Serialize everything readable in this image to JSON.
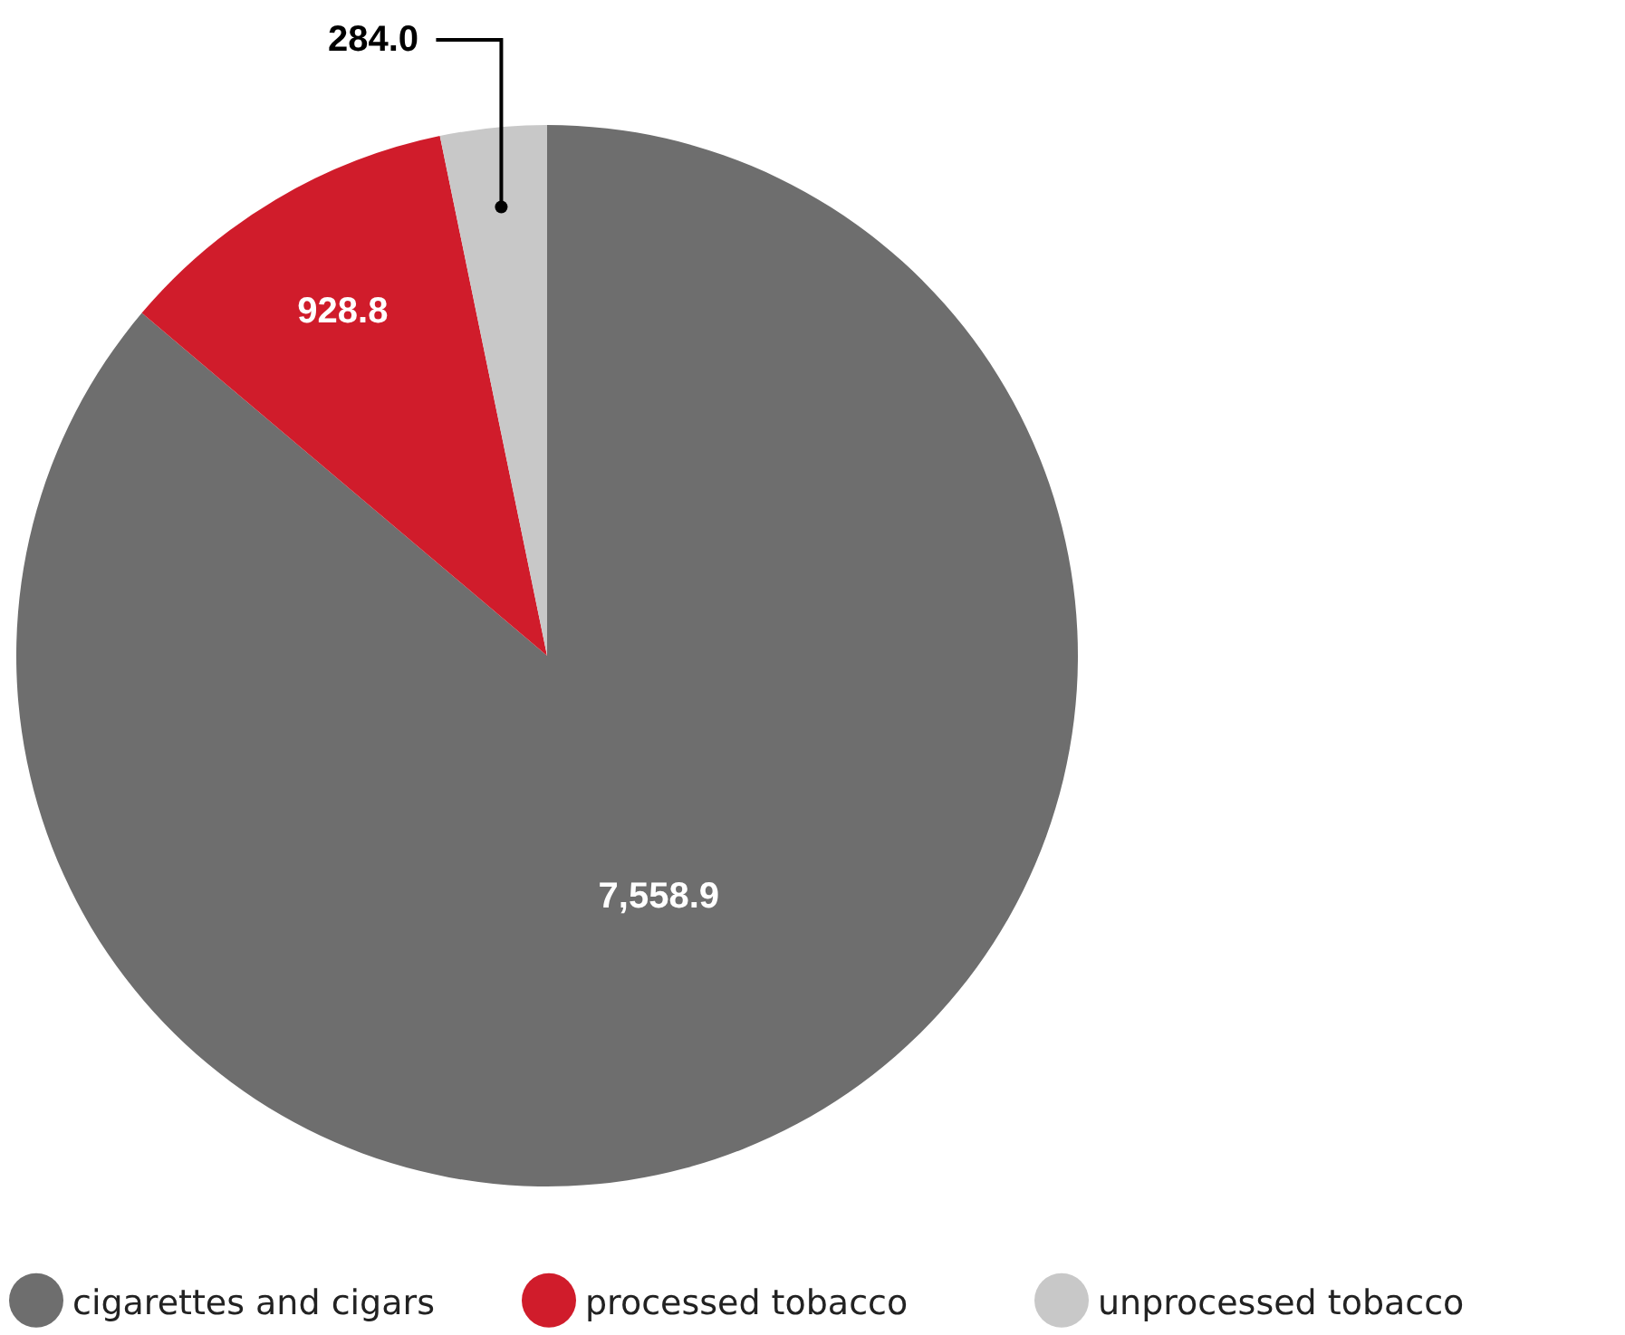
{
  "chart_data": {
    "type": "pie",
    "categories": [
      "cigarettes and cigars",
      "processed tobacco",
      "unprocessed tobacco"
    ],
    "values": [
      7558.9,
      928.8,
      284.0
    ],
    "colors": [
      "#6e6e6e",
      "#d01c2b",
      "#c8c8c8"
    ],
    "value_labels": [
      "7,558.9",
      "928.8",
      "284.0"
    ],
    "legend": "bottom"
  }
}
